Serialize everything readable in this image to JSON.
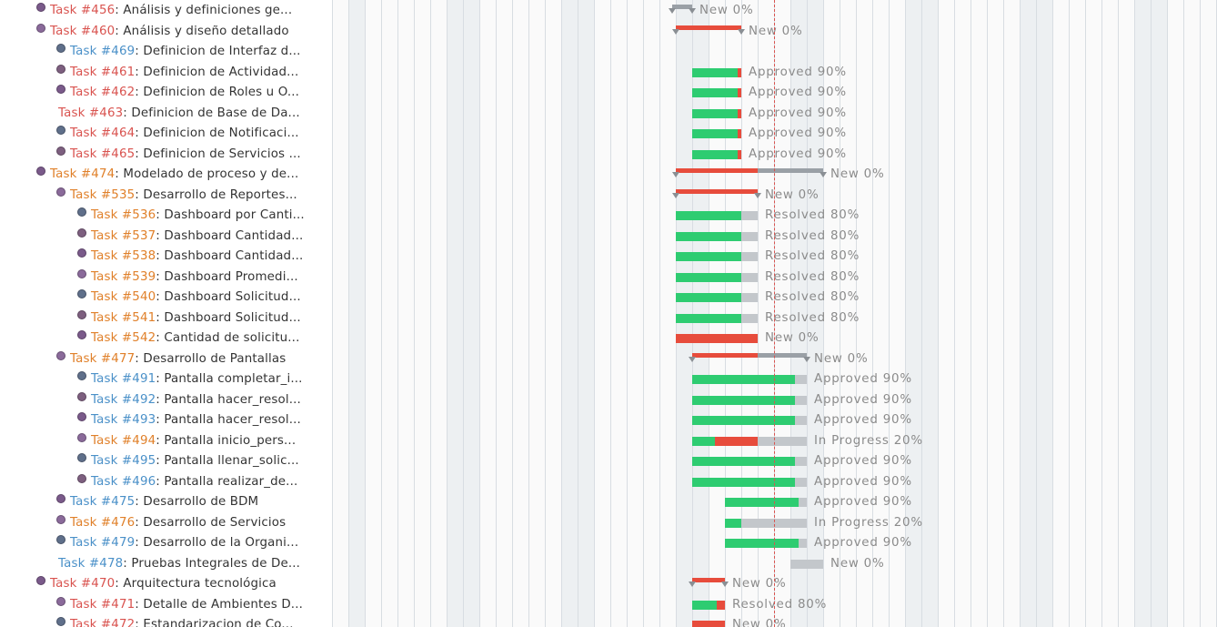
{
  "colors": {
    "task_red": "#d9534f",
    "task_orange": "#e0802a",
    "task_blue": "#4a90c8",
    "done": "#2ecc71",
    "late": "#e74c3c",
    "todo": "#c3c7cb",
    "parent_marker": "#8a8f94",
    "today_line": "#d9534f"
  },
  "calendar": {
    "nonworking_columns": [
      1,
      7,
      8,
      14,
      15,
      21,
      22,
      28,
      29,
      35,
      36,
      42,
      43,
      49,
      50
    ]
  },
  "issues": [
    {
      "id": "Task #456",
      "title": "Análisis y definiciones ge...",
      "indent": 0,
      "avatar": true,
      "avatar_icon": "user-avatar-icon",
      "id_color": "red",
      "bar": {
        "type": "parent",
        "start": 21.8,
        "end": 23,
        "progress": 0,
        "status": "New",
        "percent": "0%"
      }
    },
    {
      "id": "Task #460",
      "title": "Análisis y diseño detallado",
      "indent": 0,
      "avatar": true,
      "avatar_icon": "user-avatar-icon",
      "id_color": "red",
      "bar": {
        "type": "parent",
        "start": 22,
        "end": 26,
        "late": 26,
        "status": "New",
        "percent": "0%"
      }
    },
    {
      "id": "Task #469",
      "title": "Definicion de Interfaz d...",
      "indent": 1,
      "avatar": true,
      "avatar_icon": "user-avatar-icon",
      "id_color": "blue",
      "bar": null
    },
    {
      "id": "Task #461",
      "title": "Definicion de Actividad...",
      "indent": 1,
      "avatar": true,
      "avatar_icon": "user-avatar-icon",
      "id_color": "red",
      "bar": {
        "type": "task",
        "start": 23,
        "end": 26,
        "done": 2.75,
        "late": 3,
        "status": "Approved",
        "percent": "90%"
      }
    },
    {
      "id": "Task #462",
      "title": "Definicion de Roles u O...",
      "indent": 1,
      "avatar": true,
      "avatar_icon": "user-avatar-icon",
      "id_color": "red",
      "bar": {
        "type": "task",
        "start": 23,
        "end": 26,
        "done": 2.75,
        "late": 3,
        "status": "Approved",
        "percent": "90%"
      }
    },
    {
      "id": "Task #463",
      "title": "Definicion de Base de Da...",
      "indent": 1,
      "avatar": false,
      "avatar_icon": "",
      "id_color": "red",
      "bar": {
        "type": "task",
        "start": 23,
        "end": 26,
        "done": 2.75,
        "late": 3,
        "status": "Approved",
        "percent": "90%"
      }
    },
    {
      "id": "Task #464",
      "title": "Definicion de Notificaci...",
      "indent": 1,
      "avatar": true,
      "avatar_icon": "user-avatar-icon",
      "id_color": "red",
      "bar": {
        "type": "task",
        "start": 23,
        "end": 26,
        "done": 2.75,
        "late": 3,
        "status": "Approved",
        "percent": "90%"
      }
    },
    {
      "id": "Task #465",
      "title": "Definicion de Servicios ...",
      "indent": 1,
      "avatar": true,
      "avatar_icon": "user-avatar-icon",
      "id_color": "red",
      "bar": {
        "type": "task",
        "start": 23,
        "end": 26,
        "done": 2.75,
        "late": 3,
        "status": "Approved",
        "percent": "90%"
      }
    },
    {
      "id": "Task #474",
      "title": "Modelado de proceso y de...",
      "indent": 0,
      "avatar": true,
      "avatar_icon": "user-avatar-icon",
      "id_color": "orange",
      "bar": {
        "type": "parent",
        "start": 22,
        "end": 31,
        "late": 27,
        "status": "New",
        "percent": "0%"
      }
    },
    {
      "id": "Task #535",
      "title": "Desarrollo de Reportes...",
      "indent": 1,
      "avatar": true,
      "avatar_icon": "user-avatar-icon",
      "id_color": "orange",
      "bar": {
        "type": "parent",
        "start": 22,
        "end": 27,
        "late": 27,
        "status": "New",
        "percent": "0%"
      }
    },
    {
      "id": "Task #536",
      "title": "Dashboard por Canti...",
      "indent": 2,
      "avatar": true,
      "avatar_icon": "user-avatar-icon",
      "id_color": "orange",
      "bar": {
        "type": "task",
        "start": 22,
        "end": 27,
        "done": 4,
        "late": 4,
        "status": "Resolved",
        "percent": "80%"
      }
    },
    {
      "id": "Task #537",
      "title": "Dashboard Cantidad...",
      "indent": 2,
      "avatar": true,
      "avatar_icon": "user-avatar-icon",
      "id_color": "orange",
      "bar": {
        "type": "task",
        "start": 22,
        "end": 27,
        "done": 4,
        "late": 4,
        "status": "Resolved",
        "percent": "80%"
      }
    },
    {
      "id": "Task #538",
      "title": "Dashboard Cantidad...",
      "indent": 2,
      "avatar": true,
      "avatar_icon": "user-avatar-icon",
      "id_color": "orange",
      "bar": {
        "type": "task",
        "start": 22,
        "end": 27,
        "done": 4,
        "late": 4,
        "status": "Resolved",
        "percent": "80%"
      }
    },
    {
      "id": "Task #539",
      "title": "Dashboard Promedi...",
      "indent": 2,
      "avatar": true,
      "avatar_icon": "user-avatar-icon",
      "id_color": "orange",
      "bar": {
        "type": "task",
        "start": 22,
        "end": 27,
        "done": 4,
        "late": 4,
        "status": "Resolved",
        "percent": "80%"
      }
    },
    {
      "id": "Task #540",
      "title": "Dashboard Solicitud...",
      "indent": 2,
      "avatar": true,
      "avatar_icon": "user-avatar-icon",
      "id_color": "orange",
      "bar": {
        "type": "task",
        "start": 22,
        "end": 27,
        "done": 4,
        "late": 4,
        "status": "Resolved",
        "percent": "80%"
      }
    },
    {
      "id": "Task #541",
      "title": "Dashboard Solicitud...",
      "indent": 2,
      "avatar": true,
      "avatar_icon": "user-avatar-icon",
      "id_color": "orange",
      "bar": {
        "type": "task",
        "start": 22,
        "end": 27,
        "done": 4,
        "late": 4,
        "status": "Resolved",
        "percent": "80%"
      }
    },
    {
      "id": "Task #542",
      "title": "Cantidad de solicitu...",
      "indent": 2,
      "avatar": true,
      "avatar_icon": "user-avatar-icon",
      "id_color": "orange",
      "bar": {
        "type": "task",
        "start": 22,
        "end": 27,
        "done": 0,
        "late": 5,
        "status": "New",
        "percent": "0%"
      }
    },
    {
      "id": "Task #477",
      "title": "Desarrollo de Pantallas",
      "indent": 1,
      "avatar": true,
      "avatar_icon": "user-avatar-icon",
      "id_color": "orange",
      "bar": {
        "type": "parent",
        "start": 23,
        "end": 30,
        "late": 27,
        "status": "New",
        "percent": "0%"
      }
    },
    {
      "id": "Task #491",
      "title": "Pantalla completar_i...",
      "indent": 2,
      "avatar": true,
      "avatar_icon": "user-avatar-icon",
      "id_color": "blue",
      "bar": {
        "type": "task",
        "start": 23,
        "end": 30,
        "done": 6.3,
        "late": 6.3,
        "status": "Approved",
        "percent": "90%"
      }
    },
    {
      "id": "Task #492",
      "title": "Pantalla hacer_resol...",
      "indent": 2,
      "avatar": true,
      "avatar_icon": "user-avatar-icon",
      "id_color": "blue",
      "bar": {
        "type": "task",
        "start": 23,
        "end": 30,
        "done": 6.3,
        "late": 6.3,
        "status": "Approved",
        "percent": "90%"
      }
    },
    {
      "id": "Task #493",
      "title": "Pantalla hacer_resol...",
      "indent": 2,
      "avatar": true,
      "avatar_icon": "user-avatar-icon",
      "id_color": "blue",
      "bar": {
        "type": "task",
        "start": 23,
        "end": 30,
        "done": 6.3,
        "late": 6.3,
        "status": "Approved",
        "percent": "90%"
      }
    },
    {
      "id": "Task #494",
      "title": "Pantalla inicio_pers...",
      "indent": 2,
      "avatar": true,
      "avatar_icon": "user-avatar-icon",
      "id_color": "orange",
      "bar": {
        "type": "task",
        "start": 23,
        "end": 30,
        "done": 1.4,
        "late": 4,
        "status": "In Progress",
        "percent": "20%"
      }
    },
    {
      "id": "Task #495",
      "title": "Pantalla llenar_solic...",
      "indent": 2,
      "avatar": true,
      "avatar_icon": "user-avatar-icon",
      "id_color": "blue",
      "bar": {
        "type": "task",
        "start": 23,
        "end": 30,
        "done": 6.3,
        "late": 6.3,
        "status": "Approved",
        "percent": "90%"
      }
    },
    {
      "id": "Task #496",
      "title": "Pantalla realizar_de...",
      "indent": 2,
      "avatar": true,
      "avatar_icon": "user-avatar-icon",
      "id_color": "blue",
      "bar": {
        "type": "task",
        "start": 23,
        "end": 30,
        "done": 6.3,
        "late": 6.3,
        "status": "Approved",
        "percent": "90%"
      }
    },
    {
      "id": "Task #475",
      "title": "Desarrollo de BDM",
      "indent": 1,
      "avatar": true,
      "avatar_icon": "user-avatar-icon",
      "id_color": "blue",
      "bar": {
        "type": "task",
        "start": 25,
        "end": 30,
        "done": 4.5,
        "late": 4.5,
        "status": "Approved",
        "percent": "90%"
      }
    },
    {
      "id": "Task #476",
      "title": "Desarrollo de Servicios",
      "indent": 1,
      "avatar": true,
      "avatar_icon": "user-avatar-icon",
      "id_color": "orange",
      "bar": {
        "type": "task",
        "start": 25,
        "end": 30,
        "done": 1,
        "late": 1,
        "status": "In Progress",
        "percent": "20%"
      }
    },
    {
      "id": "Task #479",
      "title": "Desarrollo de la Organi...",
      "indent": 1,
      "avatar": true,
      "avatar_icon": "user-avatar-icon",
      "id_color": "blue",
      "bar": {
        "type": "task",
        "start": 25,
        "end": 30,
        "done": 4.5,
        "late": 4.5,
        "status": "Approved",
        "percent": "90%"
      }
    },
    {
      "id": "Task #478",
      "title": "Pruebas Integrales de De...",
      "indent": 1,
      "avatar": false,
      "avatar_icon": "",
      "id_color": "blue",
      "bar": {
        "type": "task",
        "start": 29,
        "end": 31,
        "done": 0,
        "late": 0,
        "status": "New",
        "percent": "0%"
      }
    },
    {
      "id": "Task #470",
      "title": "Arquitectura tecnológica",
      "indent": 0,
      "avatar": true,
      "avatar_icon": "user-avatar-icon",
      "id_color": "red",
      "bar": {
        "type": "parent",
        "start": 23,
        "end": 25,
        "late": 25,
        "status": "New",
        "percent": "0%"
      }
    },
    {
      "id": "Task #471",
      "title": "Detalle de Ambientes D...",
      "indent": 1,
      "avatar": true,
      "avatar_icon": "user-avatar-icon",
      "id_color": "red",
      "bar": {
        "type": "task",
        "start": 23,
        "end": 25,
        "done": 1.5,
        "late": 2,
        "status": "Resolved",
        "percent": "80%"
      }
    },
    {
      "id": "Task #472",
      "title": "Estandarizacion de Co...",
      "indent": 1,
      "avatar": true,
      "avatar_icon": "user-avatar-icon",
      "id_color": "red",
      "bar": {
        "type": "task",
        "start": 23,
        "end": 25,
        "done": 0,
        "late": 2,
        "status": "New",
        "percent": "0%"
      }
    }
  ]
}
